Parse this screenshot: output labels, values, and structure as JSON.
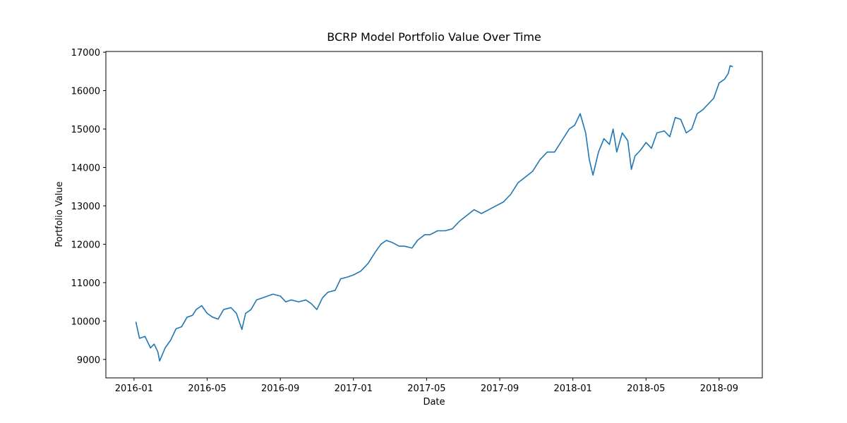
{
  "chart_data": {
    "type": "line",
    "title": "BCRP Model Portfolio Value Over Time",
    "xlabel": "Date",
    "ylabel": "Portfolio Value",
    "x": [
      0.1,
      0.3,
      0.6,
      0.9,
      1.1,
      1.3,
      1.4,
      1.7,
      2.0,
      2.3,
      2.6,
      2.9,
      3.2,
      3.4,
      3.7,
      4.0,
      4.3,
      4.6,
      4.9,
      5.3,
      5.6,
      5.9,
      6.1,
      6.4,
      6.7,
      7.0,
      7.3,
      7.6,
      8.0,
      8.3,
      8.6,
      9.0,
      9.4,
      9.7,
      10.0,
      10.3,
      10.6,
      11.0,
      11.3,
      11.7,
      12.0,
      12.4,
      12.8,
      13.2,
      13.5,
      13.8,
      14.1,
      14.5,
      14.8,
      15.2,
      15.5,
      15.9,
      16.2,
      16.6,
      17.0,
      17.4,
      17.8,
      18.2,
      18.6,
      19.0,
      19.4,
      19.8,
      20.2,
      20.6,
      21.0,
      21.4,
      21.8,
      22.2,
      22.6,
      23.0,
      23.4,
      23.8,
      24.1,
      24.4,
      24.7,
      24.9,
      25.1,
      25.4,
      25.7,
      26.0,
      26.2,
      26.4,
      26.7,
      27.0,
      27.2,
      27.4,
      27.7,
      28.0,
      28.3,
      28.6,
      29.0,
      29.3,
      29.6,
      29.9,
      30.2,
      30.5,
      30.8,
      31.1,
      31.4,
      31.7,
      32.0,
      32.3,
      32.5,
      32.6,
      32.75
    ],
    "series": [
      {
        "name": "Portfolio Value",
        "color": "#1f77b4",
        "values": [
          9980,
          9550,
          9600,
          9300,
          9400,
          9200,
          8960,
          9300,
          9500,
          9800,
          9850,
          10100,
          10150,
          10300,
          10400,
          10200,
          10100,
          10050,
          10300,
          10350,
          10200,
          9780,
          10200,
          10300,
          10550,
          10600,
          10650,
          10700,
          10650,
          10500,
          10550,
          10500,
          10550,
          10450,
          10300,
          10600,
          10750,
          10800,
          11100,
          11150,
          11200,
          11300,
          11500,
          11800,
          12000,
          12100,
          12050,
          11950,
          11950,
          11900,
          12100,
          12250,
          12250,
          12350,
          12350,
          12400,
          12600,
          12750,
          12900,
          12800,
          12900,
          13000,
          13100,
          13300,
          13600,
          13750,
          13900,
          14200,
          14400,
          14400,
          14700,
          15000,
          15100,
          15400,
          14900,
          14200,
          13800,
          14400,
          14750,
          14600,
          15000,
          14400,
          14900,
          14700,
          13950,
          14300,
          14450,
          14650,
          14500,
          14900,
          14950,
          14800,
          15300,
          15250,
          14900,
          15000,
          15400,
          15500,
          15650,
          15800,
          16200,
          16300,
          16450,
          16650,
          16620
        ]
      }
    ],
    "xlim": [
      -1.54,
      34.36
    ],
    "xticks": [
      {
        "value": 0,
        "label": "2016-01"
      },
      {
        "value": 4,
        "label": "2016-05"
      },
      {
        "value": 8,
        "label": "2016-09"
      },
      {
        "value": 12,
        "label": "2017-01"
      },
      {
        "value": 16,
        "label": "2017-05"
      },
      {
        "value": 20,
        "label": "2017-09"
      },
      {
        "value": 24,
        "label": "2018-01"
      },
      {
        "value": 28,
        "label": "2018-05"
      },
      {
        "value": 32,
        "label": "2018-09"
      }
    ],
    "ylim": [
      8520,
      17020
    ],
    "yticks": [
      9000,
      10000,
      11000,
      12000,
      13000,
      14000,
      15000,
      16000,
      17000
    ],
    "grid": false
  }
}
